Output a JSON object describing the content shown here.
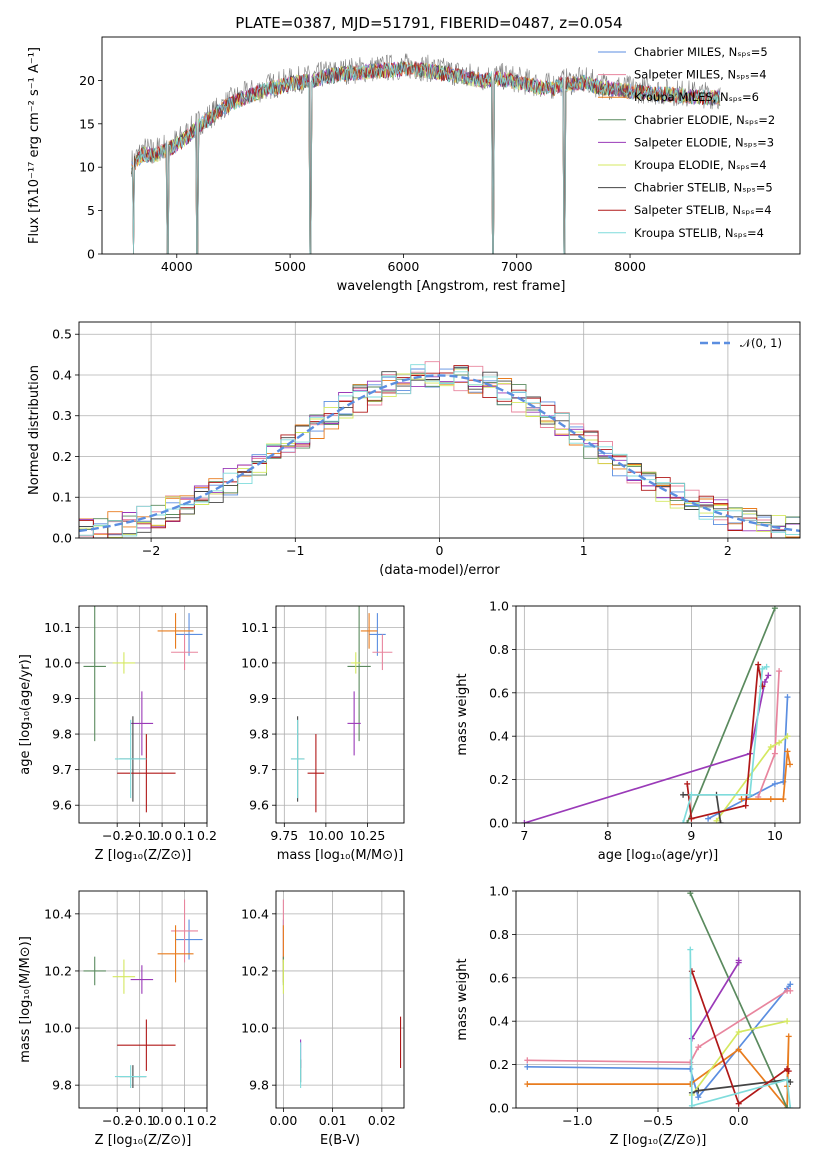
{
  "chart_data": [
    {
      "id": "spectrum",
      "type": "line",
      "title": "PLATE=0387, MJD=51791, FIBERID=0487, z=0.054",
      "xlabel": "wavelength [Angstrom, rest frame]",
      "ylabel": "Flux [fλ10⁻¹⁷ erg cm⁻² s⁻¹ A⁻¹]",
      "xlim": [
        3340,
        9500
      ],
      "ylim": [
        0,
        25
      ],
      "xticks": [
        4000,
        5000,
        6000,
        7000,
        8000
      ],
      "yticks": [
        0,
        5,
        10,
        15,
        20
      ],
      "grid": false,
      "legend_position": "top-right",
      "data_color": "#808080",
      "data_spectrum": {
        "x": [
          3600,
          3700,
          3800,
          3900,
          4000,
          4100,
          4200,
          4300,
          4400,
          4500,
          4600,
          4700,
          4800,
          4900,
          5000,
          5100,
          5200,
          5300,
          5400,
          5500,
          5600,
          5700,
          5800,
          5900,
          6000,
          6100,
          6200,
          6300,
          6400,
          6500,
          6600,
          6700,
          6800,
          6900,
          7000,
          7100,
          7200,
          7300,
          7400,
          7500,
          7600,
          7700,
          7800,
          7900,
          8000,
          8100,
          8200,
          8300,
          8400,
          8500,
          8600,
          8700,
          8800
        ],
        "y": [
          10.5,
          12.0,
          11.8,
          12.5,
          13.0,
          14.0,
          15.2,
          16.0,
          17.0,
          17.8,
          18.3,
          18.8,
          19.3,
          19.6,
          19.9,
          20.1,
          20.3,
          20.7,
          20.9,
          21.1,
          21.2,
          21.3,
          21.4,
          21.5,
          21.6,
          21.6,
          21.4,
          21.2,
          21.0,
          20.8,
          20.5,
          20.3,
          20.5,
          20.4,
          20.1,
          19.8,
          19.5,
          19.3,
          19.8,
          19.9,
          20.0,
          19.6,
          19.4,
          19.2,
          19.0,
          18.9,
          18.8,
          18.7,
          18.6,
          18.5,
          18.4,
          18.3,
          18.2
        ]
      },
      "model_spectrum": {
        "x": [
          3600,
          3700,
          3800,
          3900,
          4000,
          4100,
          4200,
          4300,
          4400,
          4500,
          4600,
          4700,
          4800,
          4900,
          5000,
          5100,
          5200,
          5300,
          5400,
          5500,
          5600,
          5700,
          5800,
          5900,
          6000,
          6100,
          6200,
          6300,
          6400,
          6500,
          6600,
          6700,
          6800,
          6900,
          7000,
          7100,
          7200,
          7300,
          7400,
          7500,
          7600,
          7700,
          7800,
          7900,
          8000,
          8100,
          8200,
          8300,
          8400,
          8500,
          8600,
          8700,
          8800
        ],
        "y": [
          10.0,
          11.5,
          11.3,
          12.0,
          12.6,
          13.6,
          14.8,
          15.7,
          16.7,
          17.5,
          18.0,
          18.5,
          19.0,
          19.3,
          19.6,
          19.8,
          20.0,
          20.4,
          20.6,
          20.8,
          20.9,
          21.0,
          21.1,
          21.2,
          21.3,
          21.3,
          21.1,
          20.9,
          20.7,
          20.5,
          20.2,
          20.0,
          20.2,
          20.1,
          19.8,
          19.5,
          19.2,
          19.0,
          19.5,
          19.6,
          19.7,
          19.3,
          19.1,
          18.9,
          18.7,
          18.6,
          18.5,
          18.4,
          18.3,
          18.2,
          18.1,
          18.0,
          17.9
        ]
      },
      "dropouts": [
        3620,
        3920,
        4180,
        5180,
        6790,
        7420
      ],
      "legend": [
        "Chabrier MILES, Nₛₚₛ=5",
        "Salpeter MILES, Nₛₚₛ=4",
        "Kroupa MILES, Nₛₚₛ=6",
        "Chabrier ELODIE, Nₛₚₛ=2",
        "Salpeter ELODIE, Nₛₚₛ=3",
        "Kroupa ELODIE, Nₛₚₛ=4",
        "Chabrier STELIB, Nₛₚₛ=5",
        "Salpeter STELIB, Nₛₚₛ=4",
        "Kroupa STELIB, Nₛₚₛ=4"
      ]
    },
    {
      "id": "residuals",
      "type": "line",
      "xlabel": "(data-model)/error",
      "ylabel": "Normed distribution",
      "xlim": [
        -2.5,
        2.5
      ],
      "ylim": [
        0,
        0.53
      ],
      "xticks": [
        -2,
        -1,
        0,
        1,
        2
      ],
      "yticks": [
        0.0,
        0.1,
        0.2,
        0.3,
        0.4,
        0.5
      ],
      "grid": true,
      "legend_position": "top-right",
      "gaussian_label": "𝒩(0, 1)",
      "gaussian_color": "#5b8ee0"
    },
    {
      "id": "age-vs-Z",
      "type": "scatter",
      "xlabel": "Z [log₁₀(Z/Z⊙)]",
      "ylabel": "age  [log₁₀(age/yr)]",
      "xlim": [
        -0.37,
        0.2
      ],
      "ylim": [
        9.55,
        10.16
      ],
      "xticks": [
        -0.2,
        -0.1,
        0.0,
        0.1,
        0.2
      ],
      "yticks": [
        9.6,
        9.7,
        9.8,
        9.9,
        10.0,
        10.1
      ],
      "grid": true,
      "points": [
        {
          "x": 0.12,
          "y": 10.08,
          "xerr": 0.06,
          "yerr": 0.06
        },
        {
          "x": 0.1,
          "y": 10.03,
          "xerr": 0.06,
          "yerr": 0.05
        },
        {
          "x": 0.06,
          "y": 10.09,
          "xerr": 0.08,
          "yerr": 0.05
        },
        {
          "x": -0.3,
          "y": 9.99,
          "xerr": 0.05,
          "yerr": 0.21
        },
        {
          "x": -0.09,
          "y": 9.83,
          "xerr": 0.05,
          "yerr": 0.09
        },
        {
          "x": -0.17,
          "y": 10.0,
          "xerr": 0.05,
          "yerr": 0.03
        },
        {
          "x": -0.13,
          "y": 9.73,
          "xerr": 0.06,
          "yerr": 0.12
        },
        {
          "x": -0.07,
          "y": 9.69,
          "xerr": 0.13,
          "yerr": 0.11
        },
        {
          "x": -0.14,
          "y": 9.73,
          "xerr": 0.07,
          "yerr": 0.11
        }
      ]
    },
    {
      "id": "age-vs-mass",
      "type": "scatter",
      "xlabel": "mass [log₁₀(M/M⊙)]",
      "xlim": [
        9.7,
        10.47
      ],
      "ylim": [
        9.55,
        10.16
      ],
      "xticks": [
        9.75,
        10.0,
        10.25
      ],
      "yticks": [
        9.6,
        9.7,
        9.8,
        9.9,
        10.0,
        10.1
      ],
      "grid": true,
      "points": [
        {
          "x": 10.31,
          "y": 10.08,
          "xerr": 0.05,
          "yerr": 0.06
        },
        {
          "x": 10.34,
          "y": 10.03,
          "xerr": 0.06,
          "yerr": 0.05
        },
        {
          "x": 10.26,
          "y": 10.09,
          "xerr": 0.05,
          "yerr": 0.05
        },
        {
          "x": 10.2,
          "y": 9.99,
          "xerr": 0.07,
          "yerr": 0.21
        },
        {
          "x": 10.17,
          "y": 9.83,
          "xerr": 0.04,
          "yerr": 0.09
        },
        {
          "x": 10.18,
          "y": 10.0,
          "xerr": 0.03,
          "yerr": 0.03
        },
        {
          "x": 9.83,
          "y": 9.73,
          "xerr": 0.04,
          "yerr": 0.12
        },
        {
          "x": 9.94,
          "y": 9.69,
          "xerr": 0.05,
          "yerr": 0.11
        },
        {
          "x": 9.83,
          "y": 9.73,
          "xerr": 0.04,
          "yerr": 0.11
        }
      ]
    },
    {
      "id": "massweight-vs-age",
      "type": "line",
      "xlabel": "age  [log₁₀(age/yr)]",
      "ylabel": "mass weight",
      "xlim": [
        6.9,
        10.3
      ],
      "ylim": [
        0,
        1.0
      ],
      "xticks": [
        7,
        8,
        9,
        10
      ],
      "yticks": [
        0.0,
        0.2,
        0.4,
        0.6,
        0.8,
        1.0
      ],
      "grid": true,
      "series": [
        {
          "x": [
            9.2,
            10.0,
            10.1,
            10.15
          ],
          "y": [
            0.02,
            0.18,
            0.19,
            0.58
          ]
        },
        {
          "x": [
            9.8,
            10.0,
            10.05
          ],
          "y": [
            0.12,
            0.32,
            0.7
          ]
        },
        {
          "x": [
            9.6,
            9.95,
            10.1,
            10.15,
            10.18
          ],
          "y": [
            0.11,
            0.11,
            0.11,
            0.33,
            0.27
          ]
        },
        {
          "x": [
            8.95,
            10.0
          ],
          "y": [
            0.0,
            0.99
          ]
        },
        {
          "x": [
            7.0,
            9.7,
            9.88,
            9.92
          ],
          "y": [
            0.0,
            0.32,
            0.65,
            0.68
          ]
        },
        {
          "x": [
            9.3,
            9.95,
            10.05,
            10.15
          ],
          "y": [
            0.01,
            0.35,
            0.37,
            0.4
          ]
        },
        {
          "x": [
            8.9,
            9.3,
            9.35
          ],
          "y": [
            0.13,
            0.13,
            0.0
          ]
        },
        {
          "x": [
            8.95,
            9.0,
            9.65,
            9.8,
            9.85
          ],
          "y": [
            0.18,
            0.02,
            0.08,
            0.73,
            0.63
          ]
        },
        {
          "x": [
            8.9,
            9.0,
            9.7,
            9.85,
            9.9
          ],
          "y": [
            0.0,
            0.13,
            0.13,
            0.71,
            0.72
          ]
        }
      ]
    },
    {
      "id": "mass-vs-Z",
      "type": "scatter",
      "xlabel": "Z [log₁₀(Z/Z⊙)]",
      "ylabel": "mass [log₁₀(M/M⊙)]",
      "xlim": [
        -0.37,
        0.2
      ],
      "ylim": [
        9.72,
        10.48
      ],
      "xticks": [
        -0.2,
        -0.1,
        0.0,
        0.1,
        0.2
      ],
      "yticks": [
        9.8,
        10.0,
        10.2,
        10.4
      ],
      "grid": true,
      "points": [
        {
          "x": 0.12,
          "y": 10.31,
          "xerr": 0.06,
          "yerr": 0.07
        },
        {
          "x": 0.1,
          "y": 10.34,
          "xerr": 0.06,
          "yerr": 0.11
        },
        {
          "x": 0.06,
          "y": 10.26,
          "xerr": 0.08,
          "yerr": 0.1
        },
        {
          "x": -0.3,
          "y": 10.2,
          "xerr": 0.05,
          "yerr": 0.05
        },
        {
          "x": -0.09,
          "y": 10.17,
          "xerr": 0.05,
          "yerr": 0.05
        },
        {
          "x": -0.17,
          "y": 10.18,
          "xerr": 0.05,
          "yerr": 0.06
        },
        {
          "x": -0.13,
          "y": 9.83,
          "xerr": 0.06,
          "yerr": 0.04
        },
        {
          "x": -0.07,
          "y": 9.94,
          "xerr": 0.13,
          "yerr": 0.09
        },
        {
          "x": -0.14,
          "y": 9.83,
          "xerr": 0.07,
          "yerr": 0.04
        }
      ]
    },
    {
      "id": "mass-vs-ebv",
      "type": "scatter",
      "xlabel": "E(B-V)",
      "xlim": [
        -0.0015,
        0.0245
      ],
      "ylim": [
        9.72,
        10.48
      ],
      "xticks": [
        0.0,
        0.01,
        0.02
      ],
      "yticks": [
        9.8,
        10.0,
        10.2,
        10.4
      ],
      "grid": true,
      "points": [
        {
          "x": 0.0,
          "y": 10.31,
          "yerr": 0.07
        },
        {
          "x": 0.0,
          "y": 10.34,
          "yerr": 0.11
        },
        {
          "x": 0.0,
          "y": 10.26,
          "yerr": 0.1
        },
        {
          "x": 0.0,
          "y": 10.2,
          "yerr": 0.05
        },
        {
          "x": 0.0035,
          "y": 9.91,
          "yerr": 0.05
        },
        {
          "x": 0.0,
          "y": 10.18,
          "yerr": 0.06
        },
        {
          "x": 0.0035,
          "y": 9.85,
          "yerr": 0.04
        },
        {
          "x": 0.0238,
          "y": 9.95,
          "yerr": 0.09
        },
        {
          "x": 0.0035,
          "y": 9.87,
          "yerr": 0.08
        }
      ]
    },
    {
      "id": "massweight-vs-Z",
      "type": "line",
      "xlabel": "Z [log₁₀(Z/Z⊙)]",
      "ylabel": "mass weight",
      "xlim": [
        -1.38,
        0.38
      ],
      "ylim": [
        0,
        1.0
      ],
      "xticks": [
        -1.0,
        -0.5,
        0.0
      ],
      "yticks": [
        0.0,
        0.2,
        0.4,
        0.6,
        0.8,
        1.0
      ],
      "grid": true,
      "series": [
        {
          "x": [
            -1.31,
            -0.3,
            -0.25,
            0.3,
            0.32
          ],
          "y": [
            0.19,
            0.18,
            0.05,
            0.55,
            0.57
          ]
        },
        {
          "x": [
            -1.31,
            -0.3,
            -0.25,
            0.3,
            0.32
          ],
          "y": [
            0.22,
            0.21,
            0.28,
            0.54,
            0.54
          ]
        },
        {
          "x": [
            -1.31,
            -0.3,
            0.0,
            0.3,
            0.31,
            0.3
          ],
          "y": [
            0.11,
            0.11,
            0.27,
            0.0,
            0.33,
            0.1
          ]
        },
        {
          "x": [
            -0.3,
            0.3
          ],
          "y": [
            0.99,
            0.0
          ]
        },
        {
          "x": [
            -0.29,
            0.0,
            0.0
          ],
          "y": [
            0.32,
            0.67,
            0.68
          ]
        },
        {
          "x": [
            -0.29,
            0.0,
            0.3
          ],
          "y": [
            0.06,
            0.35,
            0.4
          ]
        },
        {
          "x": [
            -0.29,
            -0.25,
            0.3,
            0.32
          ],
          "y": [
            0.07,
            0.08,
            0.13,
            0.12
          ]
        },
        {
          "x": [
            -0.29,
            0.0,
            0.3,
            0.31
          ],
          "y": [
            0.63,
            0.02,
            0.18,
            0.17
          ]
        },
        {
          "x": [
            -0.3,
            -0.29,
            0.3,
            0.32
          ],
          "y": [
            0.73,
            0.01,
            0.13,
            0.0
          ]
        }
      ]
    }
  ],
  "series_colors": [
    "#5b8ee0",
    "#e8859e",
    "#e87c1e",
    "#5a8a5e",
    "#9a3ab8",
    "#d4e860",
    "#444444",
    "#b01818",
    "#7fdcdc"
  ]
}
